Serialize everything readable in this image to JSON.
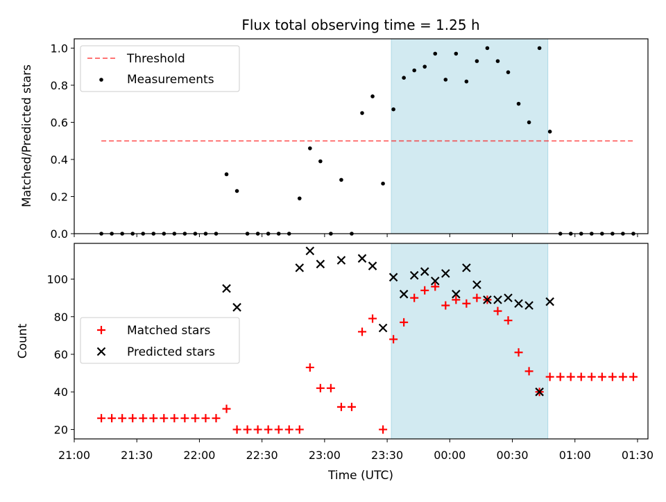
{
  "title": "Flux total observing time = 1.25 h",
  "colors": {
    "threshold": "#ff0000",
    "measurement": "#000000",
    "matched": "#ff0000",
    "predicted": "#000000",
    "shade": "#add8e6"
  },
  "chart_data": [
    {
      "type": "scatter",
      "panel": "top",
      "title": "Flux total observing time = 1.25 h",
      "ylabel": "Matched/Predicted stars",
      "xlabel": "",
      "ylim": [
        0,
        1.05
      ],
      "yticks": [
        "0.0",
        "0.2",
        "0.4",
        "0.6",
        "0.8",
        "1.0"
      ],
      "xlim": [
        "21:00",
        "01:35"
      ],
      "grid": false,
      "legend": {
        "placement": "upper-left",
        "entries": [
          "Threshold",
          "Measurements"
        ]
      },
      "shaded_span": [
        "23:32",
        "00:47"
      ],
      "threshold": {
        "name": "Threshold",
        "y": 0.5,
        "x": [
          "21:13",
          "01:28"
        ]
      },
      "series": [
        {
          "name": "Measurements",
          "points": [
            [
              "21:13",
              0
            ],
            [
              "21:18",
              0
            ],
            [
              "21:23",
              0
            ],
            [
              "21:28",
              0
            ],
            [
              "21:33",
              0
            ],
            [
              "21:38",
              0
            ],
            [
              "21:43",
              0
            ],
            [
              "21:48",
              0
            ],
            [
              "21:53",
              0
            ],
            [
              "21:58",
              0
            ],
            [
              "22:03",
              0
            ],
            [
              "22:08",
              0
            ],
            [
              "22:13",
              0.32
            ],
            [
              "22:18",
              0.23
            ],
            [
              "22:23",
              0
            ],
            [
              "22:28",
              0
            ],
            [
              "22:33",
              0
            ],
            [
              "22:38",
              0
            ],
            [
              "22:43",
              0
            ],
            [
              "22:48",
              0.19
            ],
            [
              "22:53",
              0.46
            ],
            [
              "22:58",
              0.39
            ],
            [
              "23:03",
              0
            ],
            [
              "23:08",
              0.29
            ],
            [
              "23:13",
              0
            ],
            [
              "23:18",
              0.65
            ],
            [
              "23:23",
              0.74
            ],
            [
              "23:28",
              0.27
            ],
            [
              "23:33",
              0.67
            ],
            [
              "23:38",
              0.84
            ],
            [
              "23:43",
              0.88
            ],
            [
              "23:48",
              0.9
            ],
            [
              "23:53",
              0.97
            ],
            [
              "23:58",
              0.83
            ],
            [
              "00:03",
              0.97
            ],
            [
              "00:08",
              0.82
            ],
            [
              "00:13",
              0.93
            ],
            [
              "00:18",
              1.0
            ],
            [
              "00:23",
              0.93
            ],
            [
              "00:28",
              0.87
            ],
            [
              "00:33",
              0.7
            ],
            [
              "00:38",
              0.6
            ],
            [
              "00:43",
              1.0
            ],
            [
              "00:48",
              0.55
            ],
            [
              "00:53",
              0
            ],
            [
              "00:58",
              0
            ],
            [
              "01:03",
              0
            ],
            [
              "01:08",
              0
            ],
            [
              "01:13",
              0
            ],
            [
              "01:18",
              0
            ],
            [
              "01:23",
              0
            ],
            [
              "01:28",
              0
            ]
          ]
        }
      ]
    },
    {
      "type": "scatter",
      "panel": "bottom",
      "xlabel": "Time (UTC)",
      "ylabel": "Count",
      "xticks": [
        "21:00",
        "21:30",
        "22:00",
        "22:30",
        "23:00",
        "23:30",
        "00:00",
        "00:30",
        "01:00",
        "01:30"
      ],
      "yticks": [
        "20",
        "40",
        "60",
        "80",
        "100"
      ],
      "ylim": [
        15,
        119
      ],
      "xlim": [
        "21:00",
        "01:35"
      ],
      "grid": false,
      "legend": {
        "placement": "center-left",
        "entries": [
          "Matched stars",
          "Predicted stars"
        ]
      },
      "shaded_span": [
        "23:32",
        "00:47"
      ],
      "series": [
        {
          "name": "Matched stars",
          "marker": "plus",
          "points": [
            [
              "21:13",
              26
            ],
            [
              "21:18",
              26
            ],
            [
              "21:23",
              26
            ],
            [
              "21:28",
              26
            ],
            [
              "21:33",
              26
            ],
            [
              "21:38",
              26
            ],
            [
              "21:43",
              26
            ],
            [
              "21:48",
              26
            ],
            [
              "21:53",
              26
            ],
            [
              "21:58",
              26
            ],
            [
              "22:03",
              26
            ],
            [
              "22:08",
              26
            ],
            [
              "22:13",
              31
            ],
            [
              "22:18",
              20
            ],
            [
              "22:23",
              20
            ],
            [
              "22:28",
              20
            ],
            [
              "22:33",
              20
            ],
            [
              "22:38",
              20
            ],
            [
              "22:43",
              20
            ],
            [
              "22:48",
              20
            ],
            [
              "22:53",
              53
            ],
            [
              "22:58",
              42
            ],
            [
              "23:03",
              42
            ],
            [
              "23:08",
              32
            ],
            [
              "23:13",
              32
            ],
            [
              "23:18",
              72
            ],
            [
              "23:23",
              79
            ],
            [
              "23:28",
              20
            ],
            [
              "23:33",
              68
            ],
            [
              "23:38",
              77
            ],
            [
              "23:43",
              90
            ],
            [
              "23:48",
              94
            ],
            [
              "23:53",
              96
            ],
            [
              "23:58",
              86
            ],
            [
              "00:03",
              89
            ],
            [
              "00:08",
              87
            ],
            [
              "00:13",
              90
            ],
            [
              "00:18",
              89
            ],
            [
              "00:23",
              83
            ],
            [
              "00:28",
              78
            ],
            [
              "00:33",
              61
            ],
            [
              "00:38",
              51
            ],
            [
              "00:43",
              40
            ],
            [
              "00:48",
              48
            ],
            [
              "00:53",
              48
            ],
            [
              "00:58",
              48
            ],
            [
              "01:03",
              48
            ],
            [
              "01:08",
              48
            ],
            [
              "01:13",
              48
            ],
            [
              "01:18",
              48
            ],
            [
              "01:23",
              48
            ],
            [
              "01:28",
              48
            ]
          ]
        },
        {
          "name": "Predicted stars",
          "marker": "x",
          "points": [
            [
              "22:13",
              95
            ],
            [
              "22:18",
              85
            ],
            [
              "22:48",
              106
            ],
            [
              "22:53",
              115
            ],
            [
              "22:58",
              108
            ],
            [
              "23:08",
              110
            ],
            [
              "23:18",
              111
            ],
            [
              "23:23",
              107
            ],
            [
              "23:28",
              74
            ],
            [
              "23:33",
              101
            ],
            [
              "23:38",
              92
            ],
            [
              "23:43",
              102
            ],
            [
              "23:48",
              104
            ],
            [
              "23:53",
              99
            ],
            [
              "23:58",
              103
            ],
            [
              "00:03",
              92
            ],
            [
              "00:08",
              106
            ],
            [
              "00:13",
              97
            ],
            [
              "00:18",
              89
            ],
            [
              "00:23",
              89
            ],
            [
              "00:28",
              90
            ],
            [
              "00:33",
              87
            ],
            [
              "00:38",
              86
            ],
            [
              "00:43",
              40
            ],
            [
              "00:48",
              88
            ]
          ]
        }
      ]
    }
  ]
}
